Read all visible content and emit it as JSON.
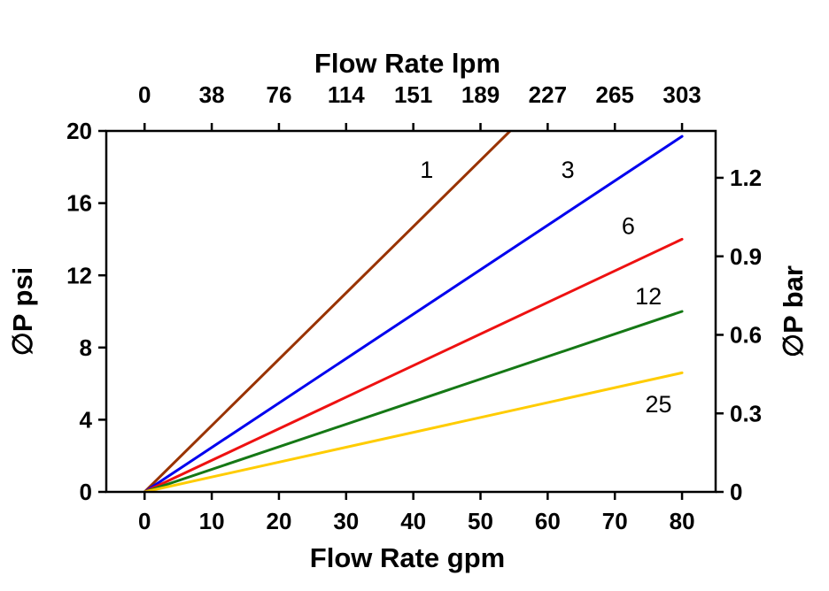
{
  "chart_data": {
    "type": "line",
    "title_top": "Flow Rate lpm",
    "xlabel_bottom": "Flow Rate gpm",
    "ylabel_left": "∅P psi",
    "ylabel_right": "∅P bar",
    "x_gpm_ticks": [
      0,
      10,
      20,
      30,
      40,
      50,
      60,
      70,
      80
    ],
    "x_lpm_ticks": [
      0,
      38,
      76,
      114,
      151,
      189,
      227,
      265,
      303
    ],
    "y_psi_ticks": [
      0,
      4,
      8,
      12,
      16,
      20
    ],
    "y_bar_ticks": [
      0,
      0.3,
      0.6,
      0.9,
      1.2
    ],
    "xlim_gpm": [
      -5.7,
      85
    ],
    "ylim_psi": [
      0,
      20
    ],
    "bar_per_psi": 0.0689476,
    "grid": false,
    "legend": "inline-line-labels",
    "axis_color": "#000000",
    "background_color": "#ffffff",
    "series": [
      {
        "name": "1",
        "color": "#993300",
        "x": [
          0,
          80
        ],
        "y": [
          0,
          29.4
        ],
        "label_pos": {
          "x": 42,
          "y": 17.4
        }
      },
      {
        "name": "3",
        "color": "#0000EE",
        "x": [
          0,
          80
        ],
        "y": [
          0,
          19.7
        ],
        "label_pos": {
          "x": 63,
          "y": 17.4
        }
      },
      {
        "name": "6",
        "color": "#EE1111",
        "x": [
          0,
          80
        ],
        "y": [
          0,
          14.0
        ],
        "label_pos": {
          "x": 72,
          "y": 14.3
        }
      },
      {
        "name": "12",
        "color": "#157815",
        "x": [
          0,
          80
        ],
        "y": [
          0,
          10.0
        ],
        "label_pos": {
          "x": 75,
          "y": 10.4
        }
      },
      {
        "name": "25",
        "color": "#FFCC00",
        "x": [
          0,
          80
        ],
        "y": [
          0,
          6.6
        ],
        "label_pos": {
          "x": 76.5,
          "y": 4.4
        }
      }
    ]
  }
}
